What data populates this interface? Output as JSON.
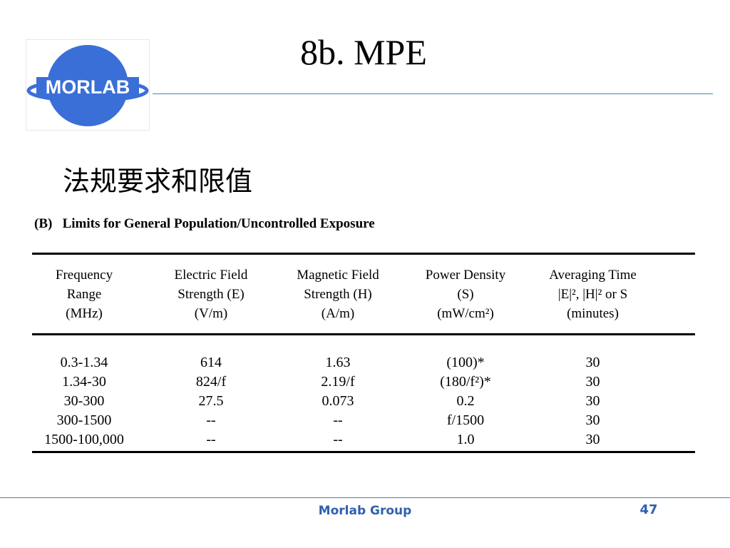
{
  "logo": {
    "text": "MORLAB",
    "color": "#3a6fd8"
  },
  "slide": {
    "title": "8b. MPE",
    "subtitle": "法规要求和限值",
    "caption": "(B)   Limits for General Population/Uncontrolled Exposure"
  },
  "table": {
    "headers": [
      [
        "Frequency",
        "Range",
        "(MHz)"
      ],
      [
        "Electric Field",
        "Strength  (E)",
        "(V/m)"
      ],
      [
        "Magnetic Field",
        "Strength  (H)",
        "(A/m)"
      ],
      [
        "Power Density",
        "(S)",
        "(mW/cm²)"
      ],
      [
        "Averaging Time",
        "|E|², |H|² or S",
        "(minutes)"
      ]
    ],
    "rows": [
      [
        "0.3-1.34",
        "614",
        "1.63",
        "(100)*",
        "30"
      ],
      [
        "1.34-30",
        "824/f",
        "2.19/f",
        "(180/f²)*",
        "30"
      ],
      [
        "30-300",
        "27.5",
        "0.073",
        "0.2",
        "30"
      ],
      [
        "300-1500",
        "--",
        "--",
        "f/1500",
        "30"
      ],
      [
        "1500-100,000",
        "--",
        "--",
        "1.0",
        "30"
      ]
    ]
  },
  "footer": {
    "label": "Morlab Group",
    "page": "47",
    "accent": "#2f5faf"
  }
}
